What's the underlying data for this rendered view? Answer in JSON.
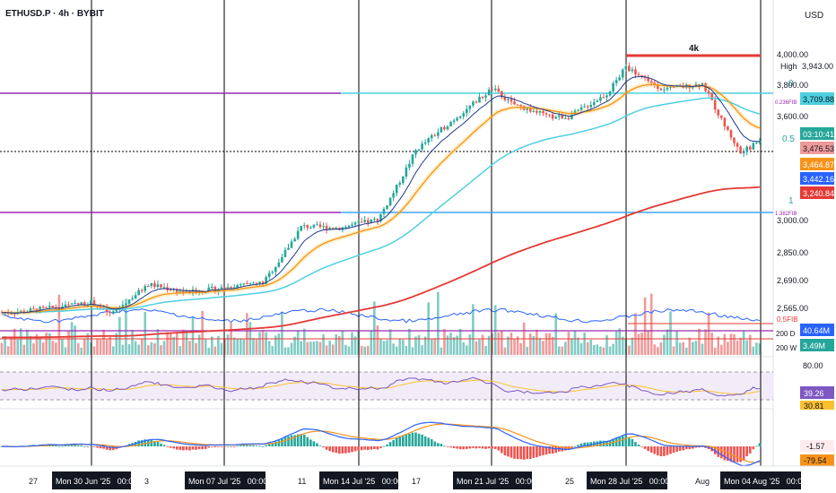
{
  "header": {
    "symbol": "ETHUSD.P · 4h · BYBIT",
    "currency": "USD"
  },
  "annotations": {
    "range_label": "4k",
    "high_label": "High"
  },
  "fib": {
    "l0": "0",
    "l236": "0.236FIB",
    "l05": "0.5",
    "l1": "1",
    "l1382": "1.382FIB",
    "l05b": "0.5FIB"
  },
  "ma_labels": {
    "d200": "200 D",
    "w200": "200 W"
  },
  "price_axis": {
    "ticks": [
      "4,000.00",
      "3,800.00",
      "3,600.00",
      "3,000.00",
      "2,850.00",
      "2,690.00",
      "2,565.00"
    ],
    "badges": {
      "high": "3,943.00",
      "fib0": "3,709.88",
      "countdown": "03:10:41",
      "last": "3,476.53",
      "ema_orange": "3,464.87",
      "ema_blue": "3,442.16",
      "sma_red": "3,240.84",
      "vol_ma": "40.64M",
      "vol": "3.49M"
    }
  },
  "rsi": {
    "tick": "80.00",
    "value": "39.26",
    "ma": "30.81"
  },
  "macd": {
    "hist": "-1.57",
    "signal": "-79.54"
  },
  "time_axis": {
    "labels": [
      "27",
      "3",
      "11",
      "17",
      "25",
      "Aug"
    ],
    "active": [
      "Mon 30 Jun '25   00:00",
      "Mon 07 Jul '25   00:00",
      "Mon 14 Jul '25   00:00",
      "Mon 21 Jul '25   00:00",
      "Mon 28 Jul '25   00:00",
      "Mon 04 Aug '25   00:00"
    ]
  },
  "colors": {
    "up": "#26a69a",
    "down": "#ef5350",
    "ema_orange": "#f7931a",
    "ema_blue": "#2962ff",
    "cyan": "#4dd0e1",
    "purple": "#9c27b0",
    "red_line": "#e53935",
    "rsi": "#7e57c2"
  },
  "chart_data": {
    "type": "candlestick",
    "symbol": "ETHUSD.P",
    "timeframe": "4h",
    "price_path": [
      [
        "2025-06-26",
        2440
      ],
      [
        "2025-06-30",
        2500
      ],
      [
        "2025-07-01",
        2430
      ],
      [
        "2025-07-03",
        2610
      ],
      [
        "2025-07-05",
        2560
      ],
      [
        "2025-07-09",
        2620
      ],
      [
        "2025-07-10",
        2780
      ],
      [
        "2025-07-11",
        2960
      ],
      [
        "2025-07-13",
        2950
      ],
      [
        "2025-07-15",
        3000
      ],
      [
        "2025-07-16",
        3200
      ],
      [
        "2025-07-17",
        3420
      ],
      [
        "2025-07-20",
        3700
      ],
      [
        "2025-07-21",
        3790
      ],
      [
        "2025-07-22",
        3700
      ],
      [
        "2025-07-24",
        3620
      ],
      [
        "2025-07-25",
        3620
      ],
      [
        "2025-07-27",
        3760
      ],
      [
        "2025-07-28",
        3920
      ],
      [
        "2025-07-30",
        3780
      ],
      [
        "2025-08-01",
        3820
      ],
      [
        "2025-08-02",
        3600
      ],
      [
        "2025-08-03",
        3400
      ],
      [
        "2025-08-04",
        3476
      ]
    ],
    "levels": {
      "high": 3943,
      "fib_0": 3709.88,
      "fib_0_5": 3476.53,
      "fib_1": 3030,
      "fib_1_382": 3030
    }
  }
}
